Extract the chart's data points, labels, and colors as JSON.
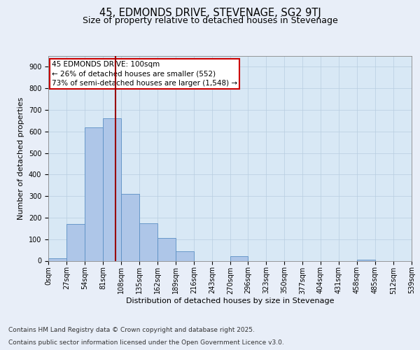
{
  "title": "45, EDMONDS DRIVE, STEVENAGE, SG2 9TJ",
  "subtitle": "Size of property relative to detached houses in Stevenage",
  "xlabel": "Distribution of detached houses by size in Stevenage",
  "ylabel": "Number of detached properties",
  "footer_line1": "Contains HM Land Registry data © Crown copyright and database right 2025.",
  "footer_line2": "Contains public sector information licensed under the Open Government Licence v3.0.",
  "annotation_line1": "45 EDMONDS DRIVE: 100sqm",
  "annotation_line2": "← 26% of detached houses are smaller (552)",
  "annotation_line3": "73% of semi-detached houses are larger (1,548) →",
  "bin_edges": [
    0,
    27,
    54,
    81,
    108,
    135,
    162,
    189,
    216,
    243,
    270,
    296,
    323,
    350,
    377,
    404,
    431,
    458,
    485,
    512,
    539
  ],
  "bar_heights": [
    10,
    170,
    620,
    660,
    310,
    175,
    105,
    45,
    0,
    0,
    20,
    0,
    0,
    0,
    0,
    0,
    0,
    5,
    0,
    0
  ],
  "bar_color": "#aec6e8",
  "bar_edge_color": "#5a8fc4",
  "vline_x": 100,
  "vline_color": "#990000",
  "annotation_box_color": "#cc0000",
  "annotation_box_fill": "#ffffff",
  "bg_color": "#e8eef8",
  "plot_bg_color": "#d8e8f5",
  "grid_color": "#b8cde0",
  "ylim": [
    0,
    950
  ],
  "yticks": [
    0,
    100,
    200,
    300,
    400,
    500,
    600,
    700,
    800,
    900
  ],
  "title_fontsize": 10.5,
  "subtitle_fontsize": 9,
  "axis_label_fontsize": 8,
  "tick_fontsize": 7,
  "annotation_fontsize": 7.5,
  "footer_fontsize": 6.5
}
